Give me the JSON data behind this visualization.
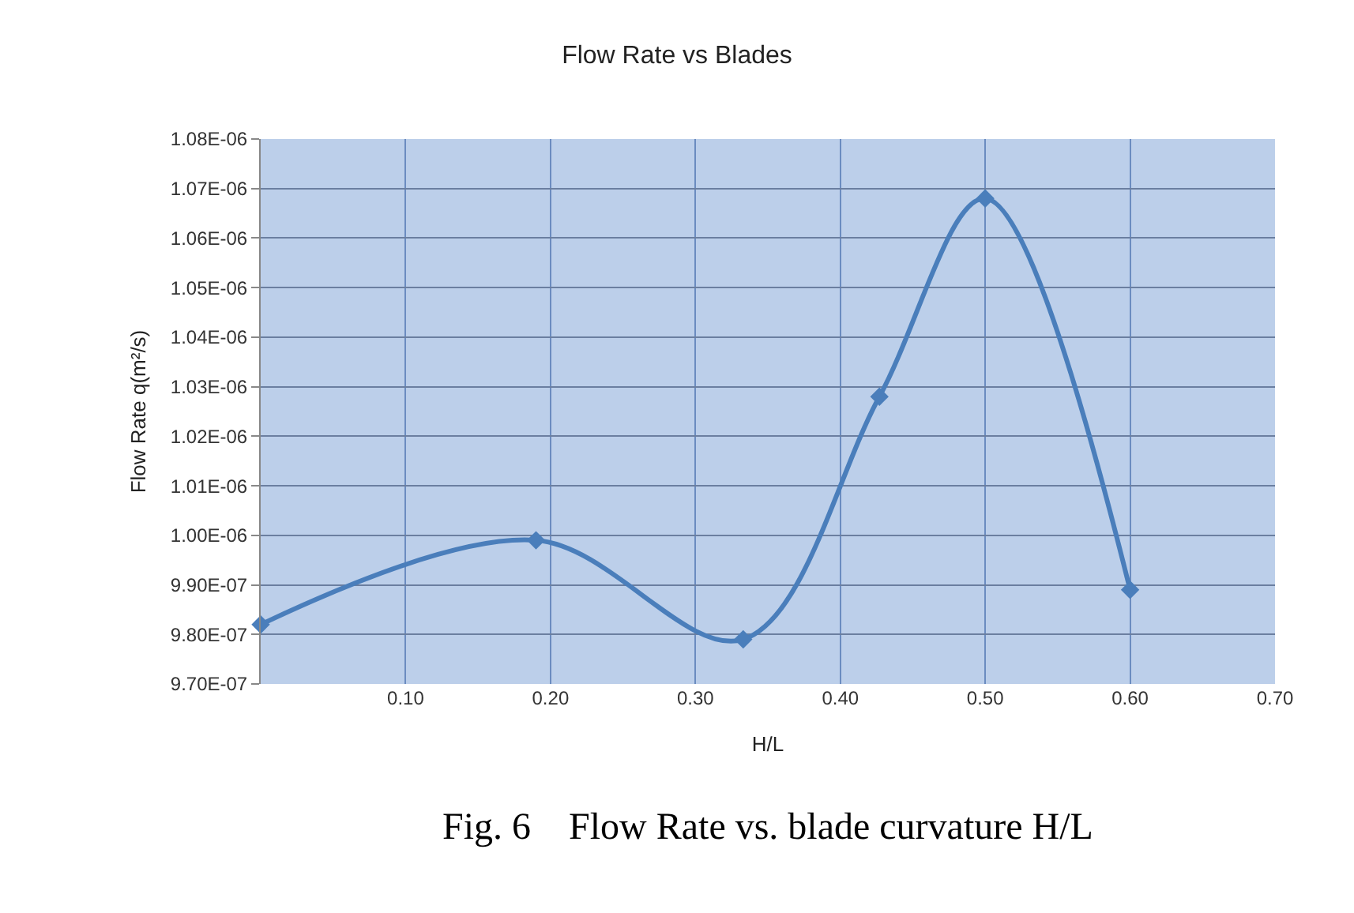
{
  "chart_data": {
    "type": "line",
    "title": "Flow Rate vs Blades",
    "xlabel": "H/L",
    "ylabel": "Flow Rate q(m²/s)",
    "x": [
      0,
      0.19,
      0.333,
      0.427,
      0.5,
      0.6
    ],
    "series": [
      {
        "color": "#4a7ebb",
        "values": [
          9.82e-07,
          9.99e-07,
          9.79e-07,
          1.028e-06,
          1.068e-06,
          9.89e-07
        ]
      }
    ],
    "xlim": [
      0,
      0.7
    ],
    "xticks": [
      {
        "value": 0,
        "label": null
      },
      {
        "value": 0.1,
        "label": "0.10"
      },
      {
        "value": 0.2,
        "label": "0.20"
      },
      {
        "value": 0.3,
        "label": "0.30"
      },
      {
        "value": 0.4,
        "label": "0.40"
      },
      {
        "value": 0.5,
        "label": "0.50"
      },
      {
        "value": 0.6,
        "label": "0.60"
      },
      {
        "value": 0.7,
        "label": "0.70"
      }
    ],
    "ylim": [
      9.7e-07,
      1.08e-06
    ],
    "yticks": [
      {
        "value": 9.7e-07,
        "label": "9.70E-07"
      },
      {
        "value": 9.8e-07,
        "label": "9.80E-07"
      },
      {
        "value": 9.9e-07,
        "label": "9.90E-07"
      },
      {
        "value": 1e-06,
        "label": "1.00E-06"
      },
      {
        "value": 1.01e-06,
        "label": "1.01E-06"
      },
      {
        "value": 1.02e-06,
        "label": "1.02E-06"
      },
      {
        "value": 1.03e-06,
        "label": "1.03E-06"
      },
      {
        "value": 1.04e-06,
        "label": "1.04E-06"
      },
      {
        "value": 1.05e-06,
        "label": "1.05E-06"
      },
      {
        "value": 1.06e-06,
        "label": "1.06E-06"
      },
      {
        "value": 1.07e-06,
        "label": "1.07E-06"
      },
      {
        "value": 1.08e-06,
        "label": "1.08E-06"
      }
    ],
    "grid": true,
    "marker": "diamond",
    "line_style": "solid",
    "annotations": [
      "Fig. 6    Flow Rate vs. blade curvature H/L"
    ]
  }
}
